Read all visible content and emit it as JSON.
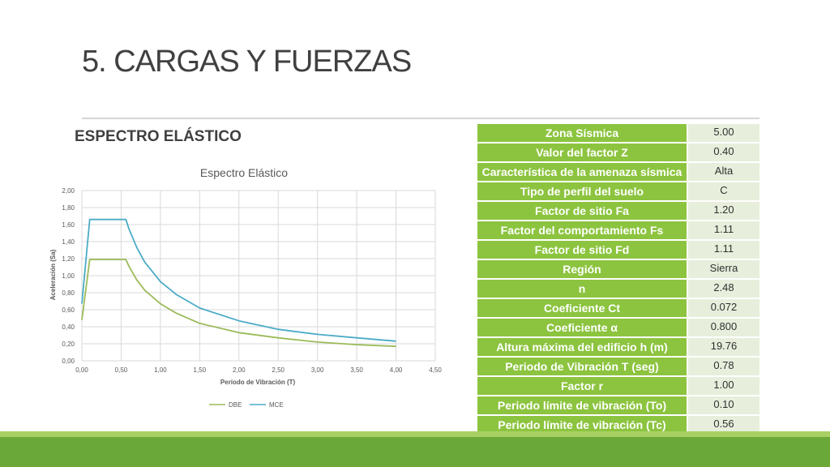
{
  "slide": {
    "title": "5. CARGAS Y FUERZAS",
    "subtitle": "ESPECTRO ELÁSTICO"
  },
  "chart_data": {
    "type": "line",
    "title": "Espectro Elástico",
    "xlabel": "Período de Vibración (T)",
    "ylabel": "Aceleración (Sa)",
    "xlim": [
      0,
      4.5
    ],
    "ylim": [
      0,
      2.0
    ],
    "x_ticks": [
      "0,00",
      "0,50",
      "1,00",
      "1,50",
      "2,00",
      "2,50",
      "3,00",
      "3,50",
      "4,00",
      "4,50"
    ],
    "y_ticks": [
      "0,00",
      "0,20",
      "0,40",
      "0,60",
      "0,80",
      "1,00",
      "1,20",
      "1,40",
      "1,60",
      "1,80",
      "2,00"
    ],
    "grid": true,
    "legend_position": "bottom",
    "series": [
      {
        "name": "DBE",
        "color": "#9bbb59",
        "x": [
          0,
          0.1,
          0.56,
          0.6,
          0.7,
          0.8,
          1.0,
          1.2,
          1.5,
          2.0,
          2.5,
          3.0,
          3.5,
          4.0
        ],
        "y": [
          0.48,
          1.19,
          1.19,
          1.11,
          0.95,
          0.83,
          0.67,
          0.56,
          0.44,
          0.33,
          0.27,
          0.22,
          0.19,
          0.17
        ]
      },
      {
        "name": "MCE",
        "color": "#4bacc6",
        "x": [
          0,
          0.1,
          0.56,
          0.6,
          0.7,
          0.8,
          1.0,
          1.2,
          1.5,
          2.0,
          2.5,
          3.0,
          3.5,
          4.0
        ],
        "y": [
          0.67,
          1.66,
          1.66,
          1.55,
          1.33,
          1.16,
          0.93,
          0.78,
          0.62,
          0.47,
          0.37,
          0.31,
          0.27,
          0.23
        ]
      }
    ]
  },
  "table": {
    "rows": [
      {
        "label": "Zona Sísmica",
        "value": "5.00"
      },
      {
        "label": "Valor del factor Z",
        "value": "0.40"
      },
      {
        "label": "Característica de la amenaza sísmica",
        "value": "Alta"
      },
      {
        "label": "Tipo de perfil del suelo",
        "value": "C"
      },
      {
        "label": "Factor de sitio Fa",
        "value": "1.20"
      },
      {
        "label": "Factor del comportamiento Fs",
        "value": "1.11"
      },
      {
        "label": "Factor de sitio Fd",
        "value": "1.11"
      },
      {
        "label": "Región",
        "value": "Sierra"
      },
      {
        "label": "n",
        "value": "2.48"
      },
      {
        "label": "Coeficiente Ct",
        "value": "0.072"
      },
      {
        "label": "Coeficiente α",
        "value": "0.800"
      },
      {
        "label": "Altura máxima del edificio h (m)",
        "value": "19.76"
      },
      {
        "label": "Periodo de Vibración T  (seg)",
        "value": "0.78"
      },
      {
        "label": "Factor r",
        "value": "1.00"
      },
      {
        "label": "Periodo límite de vibración (To)",
        "value": "0.10"
      },
      {
        "label": "Periodo límite de vibración (Tc)",
        "value": "0.56"
      }
    ]
  }
}
